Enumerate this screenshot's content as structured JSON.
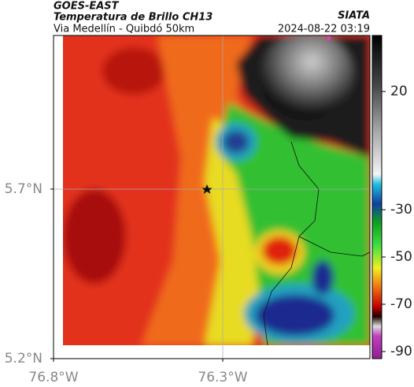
{
  "header": {
    "title": "GOES-EAST",
    "subtitle": "Temperatura de Brillo CH13",
    "route": "Via Medellín - Quibdó 50km",
    "source": "SIATA",
    "datetime": "2024-08-22 03:19"
  },
  "map": {
    "xlim": [
      -76.8,
      -75.865
    ],
    "ylim": [
      5.2,
      6.153
    ],
    "xticks": [
      {
        "value": -76.8,
        "label": "76.8°W"
      },
      {
        "value": -76.3,
        "label": "76.3°W"
      }
    ],
    "yticks": [
      {
        "value": 5.7,
        "label": "5.7°N"
      },
      {
        "value": 5.2,
        "label": "5.2°N"
      }
    ]
  },
  "colorbar": {
    "lim": [
      -93,
      43.7
    ],
    "ticks": [
      20,
      -30,
      -50,
      -70,
      -90
    ]
  }
}
